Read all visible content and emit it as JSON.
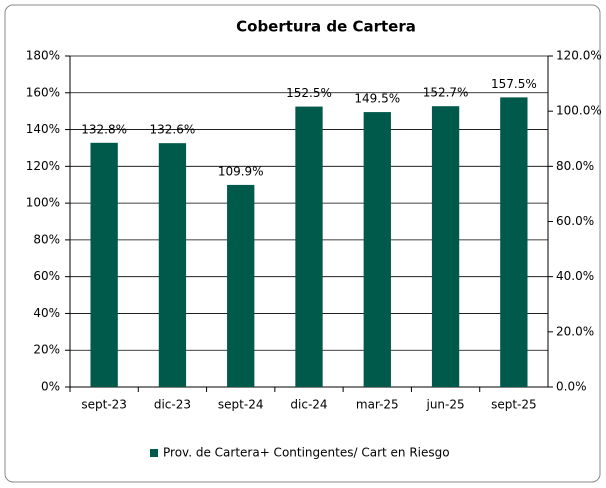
{
  "chart_data": {
    "type": "bar",
    "title": "Cobertura de Cartera",
    "categories": [
      "sept-23",
      "dic-23",
      "sept-24",
      "dic-24",
      "mar-25",
      "jun-25",
      "sept-25"
    ],
    "series": [
      {
        "name": "Prov. de Cartera+ Contingentes/ Cart en Riesgo",
        "color": "#005a4c",
        "values": [
          132.8,
          132.6,
          109.9,
          152.5,
          149.5,
          152.7,
          157.5
        ],
        "value_labels": [
          "132.8%",
          "132.6%",
          "109.9%",
          "152.5%",
          "149.5%",
          "152.7%",
          "157.5%"
        ]
      }
    ],
    "ylim": [
      0,
      180
    ],
    "yticks": [
      {
        "value": 0,
        "label": "0%"
      },
      {
        "value": 20,
        "label": "20%"
      },
      {
        "value": 40,
        "label": "40%"
      },
      {
        "value": 60,
        "label": "60%"
      },
      {
        "value": 80,
        "label": "80%"
      },
      {
        "value": 100,
        "label": "100%"
      },
      {
        "value": 120,
        "label": "120%"
      },
      {
        "value": 140,
        "label": "140%"
      },
      {
        "value": 160,
        "label": "160%"
      },
      {
        "value": 180,
        "label": "180%"
      }
    ],
    "y2lim": [
      0,
      120
    ],
    "y2ticks": [
      {
        "value": 0,
        "label": "0.0%"
      },
      {
        "value": 20,
        "label": "20.0%"
      },
      {
        "value": 40,
        "label": "40.0%"
      },
      {
        "value": 60,
        "label": "60.0%"
      },
      {
        "value": 80,
        "label": "80.0%"
      },
      {
        "value": 100,
        "label": "100.0%"
      },
      {
        "value": 120,
        "label": "120.0%"
      }
    ],
    "grid": true,
    "legend": "bottom"
  }
}
